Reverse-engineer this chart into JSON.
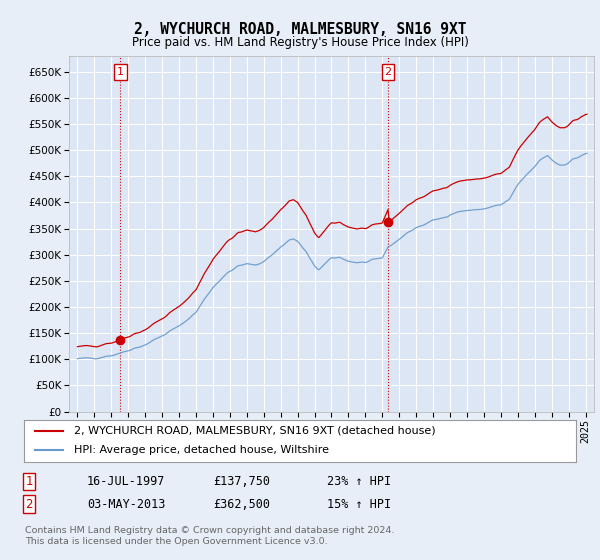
{
  "title": "2, WYCHURCH ROAD, MALMESBURY, SN16 9XT",
  "subtitle": "Price paid vs. HM Land Registry's House Price Index (HPI)",
  "legend_line1": "2, WYCHURCH ROAD, MALMESBURY, SN16 9XT (detached house)",
  "legend_line2": "HPI: Average price, detached house, Wiltshire",
  "footnote": "Contains HM Land Registry data © Crown copyright and database right 2024.\nThis data is licensed under the Open Government Licence v3.0.",
  "sale1_date": "16-JUL-1997",
  "sale1_price": "£137,750",
  "sale1_hpi": "23% ↑ HPI",
  "sale1_year": 1997.54,
  "sale1_value": 137750,
  "sale2_date": "03-MAY-2013",
  "sale2_price": "£362,500",
  "sale2_hpi": "15% ↑ HPI",
  "sale2_year": 2013.34,
  "sale2_value": 362500,
  "background_color": "#e8eef7",
  "plot_bg_color": "#dce6f5",
  "red_color": "#cc0000",
  "blue_color": "#6699cc",
  "ylim": [
    0,
    680000
  ],
  "yticks": [
    0,
    50000,
    100000,
    150000,
    200000,
    250000,
    300000,
    350000,
    400000,
    450000,
    500000,
    550000,
    600000,
    650000
  ],
  "xmin": 1994.5,
  "xmax": 2025.5
}
